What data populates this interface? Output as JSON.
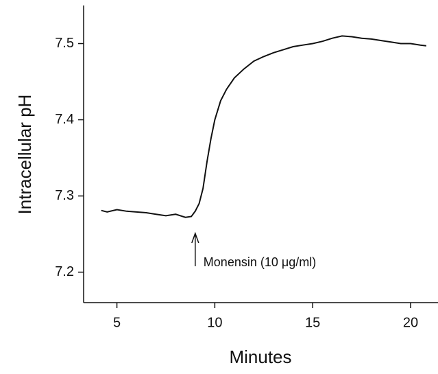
{
  "chart_data": {
    "type": "line",
    "x_label": "Minutes",
    "y_label": "Intracellular pH",
    "x": [
      4.2,
      4.5,
      5,
      5.5,
      6,
      6.5,
      7,
      7.5,
      8,
      8.5,
      8.8,
      9,
      9.2,
      9.4,
      9.6,
      9.8,
      10,
      10.3,
      10.6,
      11,
      11.5,
      12,
      12.5,
      13,
      13.5,
      14,
      14.5,
      15,
      15.5,
      16,
      16.5,
      17,
      17.5,
      18,
      18.5,
      19,
      19.5,
      20,
      20.5,
      20.8
    ],
    "series": [
      {
        "color": "#111111",
        "values": [
          7.281,
          7.279,
          7.282,
          7.28,
          7.279,
          7.278,
          7.276,
          7.274,
          7.276,
          7.272,
          7.273,
          7.28,
          7.29,
          7.31,
          7.345,
          7.375,
          7.4,
          7.425,
          7.44,
          7.455,
          7.467,
          7.477,
          7.483,
          7.488,
          7.492,
          7.496,
          7.498,
          7.5,
          7.503,
          7.507,
          7.51,
          7.509,
          7.507,
          7.506,
          7.504,
          7.502,
          7.5,
          7.5,
          7.498,
          7.497
        ]
      }
    ],
    "xlim": [
      3.3,
      21.4
    ],
    "ylim": [
      7.16,
      7.55
    ],
    "xticks": [
      5,
      10,
      15,
      20
    ],
    "yticks": [
      7.2,
      7.3,
      7.4,
      7.5
    ],
    "annotations": [
      {
        "text": "Monensin (10 μg/ml)",
        "x": 9
      }
    ]
  }
}
